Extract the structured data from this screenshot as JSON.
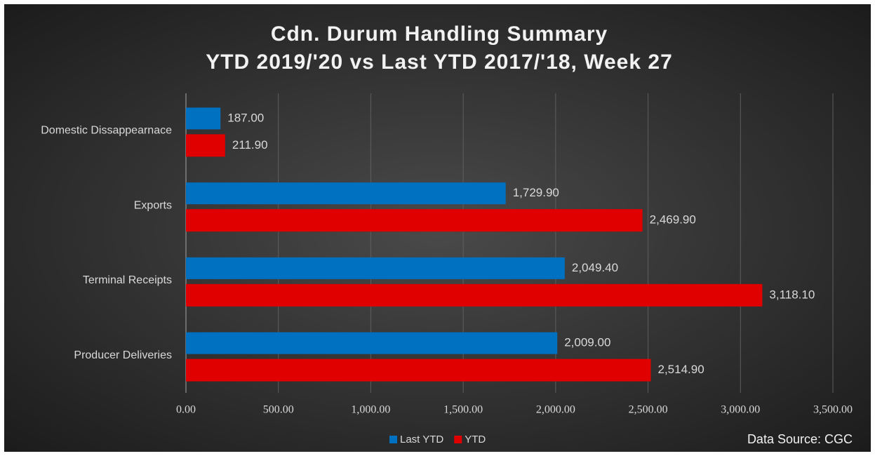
{
  "chart_data": {
    "type": "bar",
    "orientation": "horizontal",
    "title": "Cdn. Durum Handling Summary",
    "subtitle": "YTD 2019/'20 vs Last YTD 2017/'18, Week 27",
    "annotation": "Data Source: CGC",
    "categories": [
      "Domestic Dissappearnace",
      "Exports",
      "Terminal Receipts",
      "Producer Deliveries"
    ],
    "series": [
      {
        "name": "Last YTD",
        "color": "#0070c0",
        "values": [
          187.0,
          1729.9,
          2049.4,
          2009.0
        ],
        "value_labels": [
          "187.00",
          "1,729.90",
          "2,049.40",
          "2,009.00"
        ]
      },
      {
        "name": "YTD",
        "color": "#e00000",
        "values": [
          211.9,
          2469.9,
          3118.1,
          2514.9
        ],
        "value_labels": [
          "211.90",
          "2,469.90",
          "3,118.10",
          "2,514.90"
        ]
      }
    ],
    "xlim": [
      0,
      3500
    ],
    "xticks": [
      {
        "value": 0,
        "label": "0.00"
      },
      {
        "value": 500,
        "label": "500.00"
      },
      {
        "value": 1000,
        "label": "1,000.00"
      },
      {
        "value": 1500,
        "label": "1,500.00"
      },
      {
        "value": 2000,
        "label": "2,000.00"
      },
      {
        "value": 2500,
        "label": "2,500.00"
      },
      {
        "value": 3000,
        "label": "3,000.00"
      },
      {
        "value": 3500,
        "label": "3,500.00"
      }
    ],
    "grid": true,
    "legend": "bottom"
  }
}
